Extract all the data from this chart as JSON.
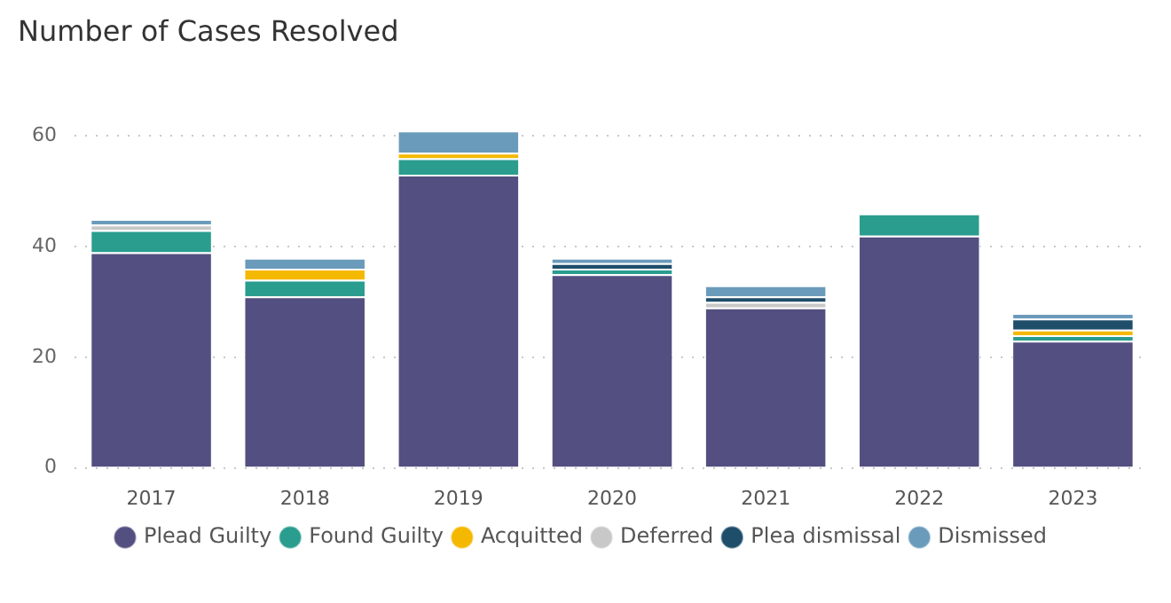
{
  "chart_data": {
    "type": "bar",
    "title": "Number of Cases Resolved",
    "stacked": true,
    "categories": [
      "2017",
      "2018",
      "2019",
      "2020",
      "2021",
      "2022",
      "2023"
    ],
    "series": [
      {
        "name": "Plead Guilty",
        "color": "#534f80",
        "values": [
          39,
          31,
          53,
          35,
          29,
          42,
          23
        ]
      },
      {
        "name": "Found Guilty",
        "color": "#2a9d8f",
        "values": [
          4,
          3,
          3,
          1,
          null,
          4,
          1
        ]
      },
      {
        "name": "Acquitted",
        "color": "#f5b800",
        "values": [
          null,
          2,
          1,
          null,
          null,
          null,
          1
        ]
      },
      {
        "name": "Deferred",
        "color": "#c8c8c8",
        "values": [
          1,
          null,
          null,
          null,
          1,
          null,
          null
        ]
      },
      {
        "name": "Plea dismissal",
        "color": "#1f4e6b",
        "values": [
          null,
          null,
          null,
          1,
          1,
          null,
          2
        ]
      },
      {
        "name": "Dismissed",
        "color": "#6b9bbb",
        "values": [
          1,
          2,
          4,
          1,
          2,
          null,
          1
        ]
      }
    ],
    "ylim": [
      0,
      61
    ],
    "yticks": [
      0,
      20,
      40,
      60
    ],
    "grid": "y",
    "legend": "bottom"
  }
}
